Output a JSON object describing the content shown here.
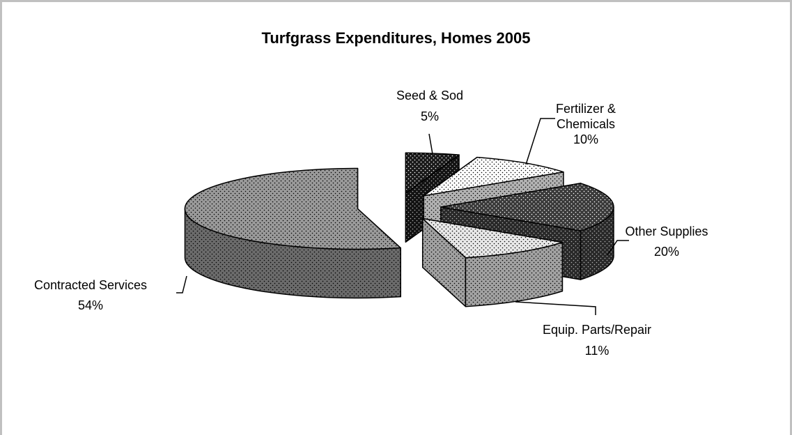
{
  "chart_data": {
    "type": "pie3d",
    "title": "Turfgrass Expenditures, Homes 2005",
    "categories": [
      "Seed & Sod",
      "Fertilizer & Chemicals",
      "Other Supplies",
      "Equip. Parts/Repair",
      "Contracted Services"
    ],
    "values": [
      5,
      10,
      20,
      11,
      54
    ],
    "value_labels": [
      "5%",
      "10%",
      "20%",
      "11%",
      "54%"
    ],
    "colors": [
      "#1a1a1a",
      "#ffffff",
      "#3a3a3a",
      "#e8e8e8",
      "#9a9a9a"
    ],
    "exploded": true
  }
}
